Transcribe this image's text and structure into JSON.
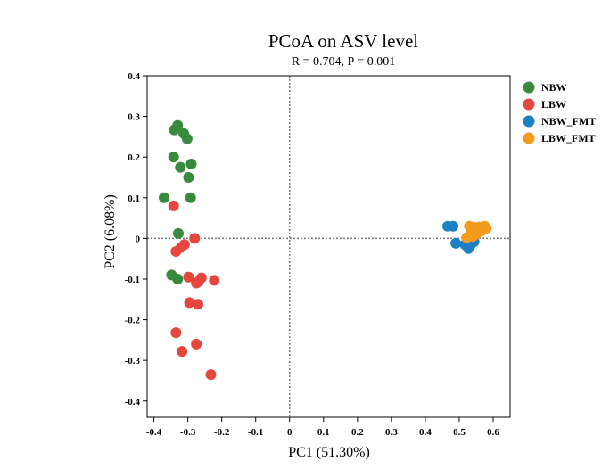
{
  "chart_data": {
    "type": "scatter",
    "title": "PCoA on ASV level",
    "subtitle": "R = 0.704, P = 0.001",
    "xlabel": "PC1 (51.30%)",
    "ylabel": "PC2 (6.08%)",
    "xlim": [
      -0.42,
      0.65
    ],
    "ylim": [
      -0.44,
      0.4
    ],
    "xticks": [
      -0.4,
      -0.3,
      -0.2,
      -0.1,
      0,
      0.1,
      0.2,
      0.3,
      0.4,
      0.5,
      0.6
    ],
    "xtick_labels": [
      "-0.4",
      "-0.3",
      "-0.2",
      "-0.1",
      "0",
      "0.1",
      "0.2",
      "0.3",
      "0.4",
      "0.5",
      "0.6"
    ],
    "yticks": [
      0.4,
      0.3,
      0.2,
      0.1,
      0,
      -0.1,
      -0.2,
      -0.3,
      -0.4
    ],
    "ytick_labels": [
      "0.4",
      "0.3",
      "0.2",
      "0.1",
      "0",
      "-0.1",
      "-0.2",
      "-0.3",
      "-0.4"
    ],
    "reference_lines": {
      "x": 0,
      "y": 0,
      "style": "dotted"
    },
    "legend_position": "right",
    "series": [
      {
        "name": "NBW",
        "color": "#3a8a3e",
        "points": [
          [
            -0.33,
            0.278
          ],
          [
            -0.34,
            0.267
          ],
          [
            -0.312,
            0.258
          ],
          [
            -0.302,
            0.245
          ],
          [
            -0.342,
            0.2
          ],
          [
            -0.322,
            0.175
          ],
          [
            -0.29,
            0.183
          ],
          [
            -0.298,
            0.15
          ],
          [
            -0.37,
            0.1
          ],
          [
            -0.292,
            0.1
          ],
          [
            -0.328,
            0.012
          ],
          [
            -0.348,
            -0.09
          ],
          [
            -0.33,
            -0.1
          ]
        ]
      },
      {
        "name": "LBW",
        "color": "#e5473e",
        "points": [
          [
            -0.342,
            0.08
          ],
          [
            -0.28,
            0.0
          ],
          [
            -0.31,
            -0.015
          ],
          [
            -0.32,
            -0.022
          ],
          [
            -0.335,
            -0.032
          ],
          [
            -0.298,
            -0.095
          ],
          [
            -0.26,
            -0.097
          ],
          [
            -0.268,
            -0.106
          ],
          [
            -0.275,
            -0.11
          ],
          [
            -0.222,
            -0.103
          ],
          [
            -0.295,
            -0.158
          ],
          [
            -0.27,
            -0.162
          ],
          [
            -0.335,
            -0.232
          ],
          [
            -0.275,
            -0.26
          ],
          [
            -0.317,
            -0.278
          ],
          [
            -0.232,
            -0.335
          ]
        ]
      },
      {
        "name": "NBW_FMT",
        "color": "#1c80c4",
        "points": [
          [
            0.466,
            0.03
          ],
          [
            0.482,
            0.03
          ],
          [
            0.49,
            -0.012
          ],
          [
            0.517,
            -0.015
          ],
          [
            0.527,
            -0.025
          ],
          [
            0.532,
            -0.018
          ],
          [
            0.544,
            -0.008
          ]
        ]
      },
      {
        "name": "LBW_FMT",
        "color": "#f49b1e",
        "points": [
          [
            0.522,
            0.002
          ],
          [
            0.54,
            0.005
          ],
          [
            0.55,
            0.01
          ],
          [
            0.535,
            0.022
          ],
          [
            0.545,
            0.027
          ],
          [
            0.56,
            0.028
          ],
          [
            0.575,
            0.03
          ],
          [
            0.58,
            0.025
          ],
          [
            0.552,
            0.015
          ],
          [
            0.565,
            0.018
          ],
          [
            0.53,
            0.03
          ]
        ]
      }
    ]
  }
}
